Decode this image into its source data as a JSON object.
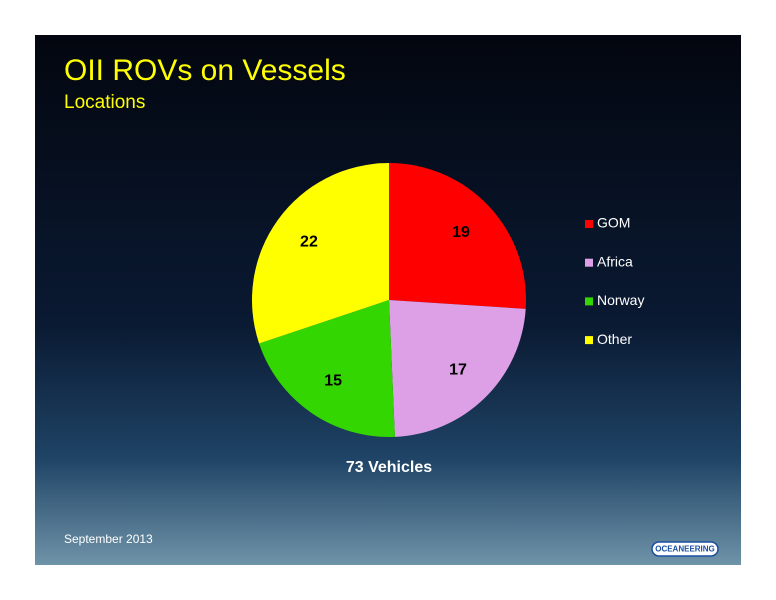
{
  "chart_data": {
    "type": "pie",
    "title": "OII ROVs on Vessels",
    "subtitle": "Locations",
    "categories": [
      "GOM",
      "Africa",
      "Norway",
      "Other"
    ],
    "values": [
      19,
      17,
      15,
      22
    ],
    "colors": [
      "#ff0000",
      "#dda0e6",
      "#33d600",
      "#ffff00"
    ],
    "annotation": "73 Vehicles"
  },
  "footer": {
    "date": "September 2013",
    "logo": "OCEANEERING"
  }
}
